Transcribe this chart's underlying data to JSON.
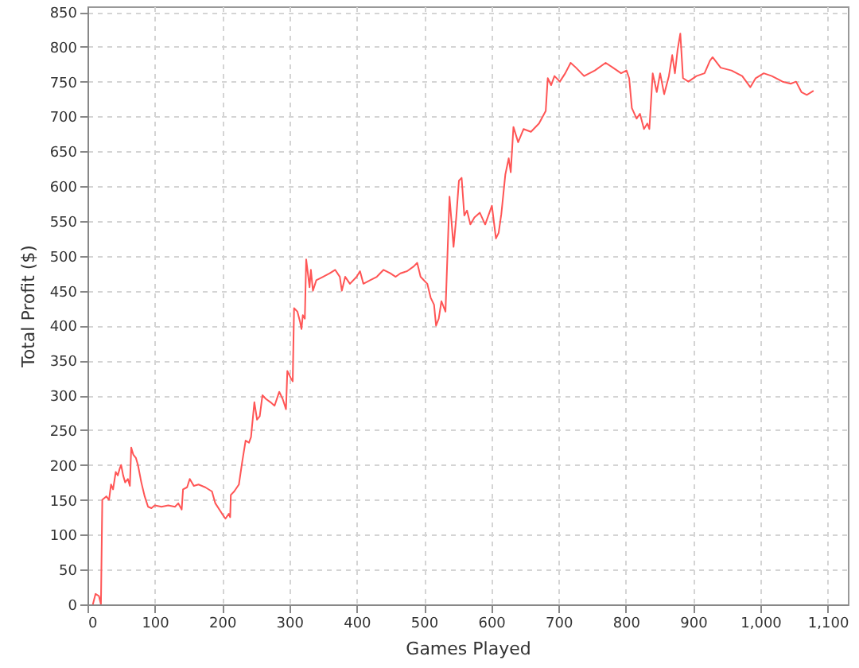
{
  "chart_data": {
    "type": "line",
    "xlabel": "Games Played",
    "ylabel": "Total Profit ($)",
    "xlim": [
      0,
      1130
    ],
    "ylim": [
      0,
      858
    ],
    "xticks": [
      0,
      100,
      200,
      300,
      400,
      500,
      600,
      700,
      800,
      900,
      {
        "value": 1000,
        "label": "1,000"
      },
      {
        "value": 1100,
        "label": "1,100"
      }
    ],
    "yticks": [
      0,
      50,
      100,
      150,
      200,
      250,
      300,
      350,
      400,
      450,
      500,
      550,
      600,
      650,
      700,
      750,
      800,
      850
    ],
    "grid": true,
    "line_style": "solid",
    "marker": "none",
    "x": [
      8,
      12,
      17,
      20,
      22,
      28,
      32,
      35,
      38,
      42,
      45,
      48,
      50,
      53,
      56,
      60,
      63,
      65,
      68,
      72,
      75,
      80,
      85,
      90,
      95,
      100,
      110,
      120,
      130,
      135,
      140,
      142,
      148,
      152,
      158,
      165,
      175,
      185,
      190,
      200,
      205,
      210,
      212,
      213,
      218,
      225,
      230,
      235,
      240,
      243,
      248,
      252,
      256,
      260,
      265,
      272,
      278,
      285,
      290,
      295,
      297,
      302,
      305,
      307,
      312,
      316,
      318,
      320,
      323,
      325,
      330,
      332,
      335,
      340,
      350,
      360,
      368,
      375,
      378,
      383,
      390,
      400,
      405,
      410,
      420,
      430,
      440,
      450,
      458,
      465,
      475,
      485,
      490,
      495,
      500,
      505,
      510,
      515,
      518,
      522,
      526,
      532,
      538,
      544,
      548,
      552,
      556,
      560,
      564,
      569,
      575,
      583,
      591,
      601,
      607,
      611,
      615,
      621,
      626,
      629,
      633,
      640,
      648,
      659,
      671,
      681,
      684,
      689,
      694,
      702,
      710,
      718,
      726,
      738,
      754,
      770,
      781,
      793,
      801,
      805,
      809,
      816,
      821,
      827,
      832,
      835,
      840,
      846,
      851,
      857,
      864,
      869,
      873,
      877,
      881,
      885,
      893,
      905,
      917,
      925,
      929,
      941,
      957,
      973,
      985,
      993,
      1005,
      1017,
      1033,
      1045,
      1053,
      1061,
      1069,
      1079
    ],
    "series": [
      {
        "color": "#ff5555",
        "values": [
          0,
          15,
          12,
          0,
          150,
          155,
          150,
          172,
          165,
          190,
          185,
          195,
          200,
          185,
          175,
          180,
          170,
          225,
          215,
          210,
          200,
          175,
          155,
          140,
          138,
          142,
          140,
          142,
          140,
          145,
          136,
          165,
          168,
          180,
          170,
          172,
          168,
          162,
          145,
          130,
          123,
          130,
          125,
          157,
          162,
          172,
          205,
          235,
          232,
          240,
          290,
          265,
          270,
          300,
          295,
          290,
          285,
          305,
          295,
          280,
          335,
          325,
          320,
          425,
          420,
          405,
          395,
          415,
          410,
          495,
          455,
          480,
          450,
          465,
          470,
          475,
          480,
          470,
          450,
          470,
          460,
          470,
          478,
          460,
          465,
          470,
          480,
          475,
          470,
          475,
          478,
          485,
          490,
          470,
          465,
          460,
          440,
          430,
          400,
          410,
          435,
          420,
          585,
          513,
          555,
          608,
          612,
          558,
          565,
          545,
          555,
          562,
          545,
          572,
          525,
          533,
          560,
          617,
          640,
          620,
          685,
          663,
          682,
          678,
          690,
          708,
          755,
          745,
          758,
          750,
          762,
          777,
          770,
          758,
          766,
          777,
          770,
          762,
          766,
          755,
          712,
          697,
          704,
          682,
          690,
          682,
          762,
          735,
          762,
          732,
          758,
          788,
          762,
          796,
          819,
          755,
          750,
          758,
          762,
          780,
          785,
          770,
          766,
          758,
          742,
          755,
          762,
          758,
          750,
          747,
          750,
          735,
          731,
          737
        ]
      }
    ]
  }
}
